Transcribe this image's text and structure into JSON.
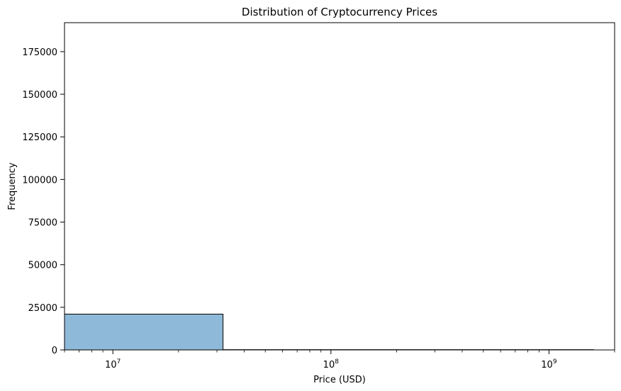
{
  "chart_data": {
    "type": "bar",
    "title": "Distribution of Cryptocurrency Prices",
    "xlabel": "Price (USD)",
    "ylabel": "Frequency",
    "x_scale": "log",
    "xlim": [
      6000000,
      2000000000
    ],
    "ylim": [
      0,
      192000
    ],
    "x_ticks": [
      {
        "value": 10000000,
        "base": "10",
        "exp": "7"
      },
      {
        "value": 100000000,
        "base": "10",
        "exp": "8"
      },
      {
        "value": 1000000000,
        "base": "10",
        "exp": "9"
      }
    ],
    "y_ticks": [
      0,
      25000,
      50000,
      75000,
      100000,
      125000,
      150000,
      175000
    ],
    "bins": [
      {
        "x0": 6000000,
        "x1": 32000000,
        "count": 21000
      },
      {
        "x0": 32000000,
        "x1": 1600000000,
        "count": 150
      }
    ],
    "bar_color": "#8fb9d8",
    "edge_color": "#000000",
    "grid": false,
    "legend": "none"
  }
}
